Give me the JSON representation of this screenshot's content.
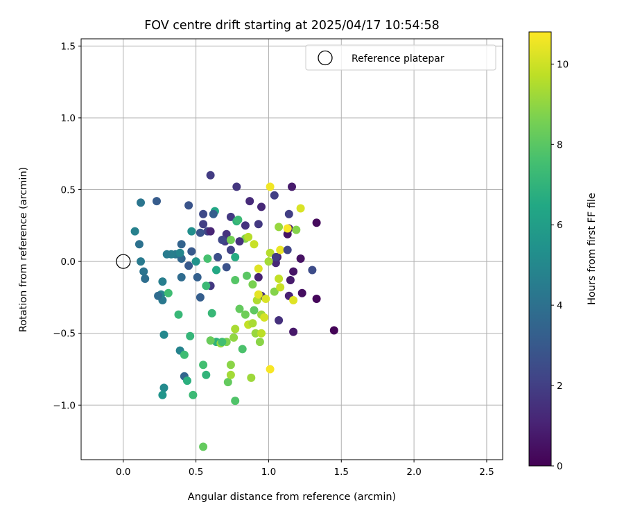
{
  "chart_data": {
    "type": "scatter",
    "title": "FOV centre drift starting at 2025/04/17 10:54:58",
    "xlabel": "Angular distance from reference (arcmin)",
    "ylabel": "Rotation from reference (arcmin)",
    "xlim": [
      -0.29,
      2.61
    ],
    "ylim": [
      -1.38,
      1.55
    ],
    "xticks": [
      "0.0",
      "0.5",
      "1.0",
      "1.5",
      "2.0",
      "2.5"
    ],
    "yticks": [
      "−1.0",
      "−0.5",
      "0.0",
      "0.5",
      "1.0",
      "1.5"
    ],
    "grid": true,
    "legend": {
      "position": "upper right",
      "entries": [
        "Reference platepar"
      ]
    },
    "reference_point": {
      "x": 0.0,
      "y": 0.0
    },
    "colorbar": {
      "label": "Hours from first FF file",
      "ticks": [
        "0",
        "2",
        "4",
        "6",
        "8",
        "10"
      ],
      "range": [
        0,
        10.8
      ],
      "colormap": "viridis"
    },
    "points": [
      {
        "x": 1.45,
        "y": -0.48,
        "h": 0.1
      },
      {
        "x": 1.33,
        "y": -0.26,
        "h": 0.2
      },
      {
        "x": 1.33,
        "y": 0.27,
        "h": 0.3
      },
      {
        "x": 1.23,
        "y": -0.22,
        "h": 0.4
      },
      {
        "x": 1.22,
        "y": 0.02,
        "h": 0.5
      },
      {
        "x": 1.17,
        "y": -0.07,
        "h": 0.6
      },
      {
        "x": 1.17,
        "y": -0.49,
        "h": 0.7
      },
      {
        "x": 1.16,
        "y": 0.52,
        "h": 0.8
      },
      {
        "x": 1.14,
        "y": 0.23,
        "h": 0.9
      },
      {
        "x": 1.14,
        "y": -0.24,
        "h": 1.0
      },
      {
        "x": 1.13,
        "y": 0.19,
        "h": 0.6
      },
      {
        "x": 1.15,
        "y": -0.13,
        "h": 0.8
      },
      {
        "x": 1.06,
        "y": 0.03,
        "h": 1.0
      },
      {
        "x": 1.07,
        "y": -0.41,
        "h": 1.5
      },
      {
        "x": 1.05,
        "y": -0.01,
        "h": 1.2
      },
      {
        "x": 1.04,
        "y": 0.46,
        "h": 2.0
      },
      {
        "x": 0.95,
        "y": 0.38,
        "h": 1.2
      },
      {
        "x": 0.93,
        "y": -0.11,
        "h": 1.0
      },
      {
        "x": 0.95,
        "y": -0.24,
        "h": 1.5
      },
      {
        "x": 0.93,
        "y": 0.26,
        "h": 1.8
      },
      {
        "x": 0.87,
        "y": 0.42,
        "h": 1.3
      },
      {
        "x": 0.84,
        "y": 0.25,
        "h": 1.6
      },
      {
        "x": 0.78,
        "y": 0.52,
        "h": 1.7
      },
      {
        "x": 0.74,
        "y": 0.31,
        "h": 1.8
      },
      {
        "x": 0.7,
        "y": 0.14,
        "h": 1.9
      },
      {
        "x": 0.71,
        "y": 0.19,
        "h": 1.6
      },
      {
        "x": 0.71,
        "y": -0.04,
        "h": 2.7
      },
      {
        "x": 0.74,
        "y": 0.08,
        "h": 2.1
      },
      {
        "x": 0.65,
        "y": 0.03,
        "h": 2.6
      },
      {
        "x": 0.6,
        "y": 0.6,
        "h": 1.9
      },
      {
        "x": 0.6,
        "y": -0.17,
        "h": 1.8
      },
      {
        "x": 0.58,
        "y": 0.21,
        "h": 2.2
      },
      {
        "x": 0.55,
        "y": 0.26,
        "h": 2.0
      },
      {
        "x": 0.55,
        "y": 0.33,
        "h": 2.4
      },
      {
        "x": 0.53,
        "y": 0.2,
        "h": 2.8
      },
      {
        "x": 0.53,
        "y": -0.25,
        "h": 3.2
      },
      {
        "x": 0.51,
        "y": -0.11,
        "h": 3.3
      },
      {
        "x": 0.47,
        "y": 0.07,
        "h": 3.0
      },
      {
        "x": 0.45,
        "y": 0.39,
        "h": 2.8
      },
      {
        "x": 0.45,
        "y": -0.03,
        "h": 3.0
      },
      {
        "x": 0.4,
        "y": 0.12,
        "h": 3.4
      },
      {
        "x": 0.4,
        "y": 0.02,
        "h": 3.6
      },
      {
        "x": 0.4,
        "y": -0.11,
        "h": 3.8
      },
      {
        "x": 0.42,
        "y": -0.8,
        "h": 3.5
      },
      {
        "x": 0.39,
        "y": -0.62,
        "h": 4.8
      },
      {
        "x": 0.36,
        "y": 0.05,
        "h": 4.3
      },
      {
        "x": 0.33,
        "y": 0.05,
        "h": 4.6
      },
      {
        "x": 0.39,
        "y": 0.06,
        "h": 4.9
      },
      {
        "x": 0.47,
        "y": 0.21,
        "h": 5.3
      },
      {
        "x": 0.5,
        "y": 0.0,
        "h": 5.5
      },
      {
        "x": 0.28,
        "y": -0.51,
        "h": 5.0
      },
      {
        "x": 0.28,
        "y": -0.88,
        "h": 5.1
      },
      {
        "x": 0.27,
        "y": -0.93,
        "h": 5.6
      },
      {
        "x": 0.27,
        "y": -0.27,
        "h": 4.3
      },
      {
        "x": 0.26,
        "y": -0.23,
        "h": 4.8
      },
      {
        "x": 0.27,
        "y": -0.14,
        "h": 4.6
      },
      {
        "x": 0.24,
        "y": -0.24,
        "h": 3.8
      },
      {
        "x": 0.23,
        "y": 0.42,
        "h": 3.1
      },
      {
        "x": 0.15,
        "y": -0.12,
        "h": 3.9
      },
      {
        "x": 0.14,
        "y": -0.07,
        "h": 4.1
      },
      {
        "x": 0.12,
        "y": 0.0,
        "h": 4.4
      },
      {
        "x": 0.11,
        "y": 0.12,
        "h": 4.0
      },
      {
        "x": 0.08,
        "y": 0.21,
        "h": 4.7
      },
      {
        "x": 0.12,
        "y": 0.41,
        "h": 4.2
      },
      {
        "x": 0.31,
        "y": -0.22,
        "h": 7.4
      },
      {
        "x": 0.38,
        "y": -0.37,
        "h": 7.2
      },
      {
        "x": 0.42,
        "y": -0.65,
        "h": 7.4
      },
      {
        "x": 0.46,
        "y": -0.52,
        "h": 7.1
      },
      {
        "x": 0.44,
        "y": -0.83,
        "h": 6.8
      },
      {
        "x": 0.48,
        "y": -0.93,
        "h": 7.3
      },
      {
        "x": 0.55,
        "y": -1.29,
        "h": 8.2
      },
      {
        "x": 0.55,
        "y": -0.72,
        "h": 7.5
      },
      {
        "x": 0.57,
        "y": -0.79,
        "h": 7.0
      },
      {
        "x": 0.57,
        "y": -0.17,
        "h": 7.3
      },
      {
        "x": 0.58,
        "y": 0.02,
        "h": 7.6
      },
      {
        "x": 0.61,
        "y": -0.36,
        "h": 7.2
      },
      {
        "x": 0.64,
        "y": -0.06,
        "h": 6.5
      },
      {
        "x": 0.63,
        "y": 0.35,
        "h": 6.4
      },
      {
        "x": 0.64,
        "y": -0.56,
        "h": 6.9
      },
      {
        "x": 0.67,
        "y": -0.57,
        "h": 9.0
      },
      {
        "x": 0.71,
        "y": -0.56,
        "h": 8.7
      },
      {
        "x": 0.72,
        "y": -0.84,
        "h": 8.2
      },
      {
        "x": 0.74,
        "y": -0.72,
        "h": 8.9
      },
      {
        "x": 0.74,
        "y": -0.79,
        "h": 9.3
      },
      {
        "x": 0.74,
        "y": 0.15,
        "h": 8.5
      },
      {
        "x": 0.76,
        "y": -0.53,
        "h": 9.0
      },
      {
        "x": 0.77,
        "y": -0.97,
        "h": 7.8
      },
      {
        "x": 0.77,
        "y": -0.47,
        "h": 9.4
      },
      {
        "x": 0.77,
        "y": -0.13,
        "h": 7.9
      },
      {
        "x": 0.78,
        "y": 0.28,
        "h": 6.9
      },
      {
        "x": 0.77,
        "y": 0.03,
        "h": 6.6
      },
      {
        "x": 0.79,
        "y": 0.29,
        "h": 7.3
      },
      {
        "x": 0.8,
        "y": -0.33,
        "h": 8.2
      },
      {
        "x": 0.82,
        "y": -0.61,
        "h": 7.7
      },
      {
        "x": 0.84,
        "y": -0.37,
        "h": 8.4
      },
      {
        "x": 0.84,
        "y": 0.16,
        "h": 8.8
      },
      {
        "x": 0.85,
        "y": -0.1,
        "h": 8.0
      },
      {
        "x": 0.86,
        "y": 0.17,
        "h": 9.6
      },
      {
        "x": 0.86,
        "y": -0.44,
        "h": 9.8
      },
      {
        "x": 0.88,
        "y": -0.81,
        "h": 9.2
      },
      {
        "x": 0.89,
        "y": -0.43,
        "h": 9.4
      },
      {
        "x": 0.89,
        "y": -0.16,
        "h": 8.6
      },
      {
        "x": 0.9,
        "y": 0.12,
        "h": 9.9
      },
      {
        "x": 0.9,
        "y": -0.34,
        "h": 8.1
      },
      {
        "x": 0.91,
        "y": -0.5,
        "h": 9.1
      },
      {
        "x": 0.92,
        "y": -0.27,
        "h": 9.5
      },
      {
        "x": 0.93,
        "y": -0.05,
        "h": 10.3
      },
      {
        "x": 0.93,
        "y": -0.23,
        "h": 10.4
      },
      {
        "x": 0.94,
        "y": -0.56,
        "h": 8.9
      },
      {
        "x": 0.95,
        "y": -0.5,
        "h": 9.7
      },
      {
        "x": 0.95,
        "y": -0.37,
        "h": 9.2
      },
      {
        "x": 0.97,
        "y": -0.39,
        "h": 10.1
      },
      {
        "x": 0.98,
        "y": -0.26,
        "h": 10.2
      },
      {
        "x": 1.0,
        "y": 0.0,
        "h": 9.3
      },
      {
        "x": 1.01,
        "y": 0.52,
        "h": 10.6
      },
      {
        "x": 1.01,
        "y": -0.75,
        "h": 10.7
      },
      {
        "x": 1.01,
        "y": 0.06,
        "h": 9.6
      },
      {
        "x": 1.04,
        "y": -0.21,
        "h": 8.8
      },
      {
        "x": 1.07,
        "y": -0.12,
        "h": 9.8
      },
      {
        "x": 1.07,
        "y": 0.24,
        "h": 9.1
      },
      {
        "x": 1.08,
        "y": -0.18,
        "h": 9.9
      },
      {
        "x": 1.08,
        "y": 0.08,
        "h": 10.5
      },
      {
        "x": 1.13,
        "y": 0.23,
        "h": 10.7
      },
      {
        "x": 1.17,
        "y": -0.27,
        "h": 10.3
      },
      {
        "x": 1.19,
        "y": 0.22,
        "h": 8.8
      },
      {
        "x": 1.22,
        "y": 0.37,
        "h": 10.2
      },
      {
        "x": 1.05,
        "y": 0.03,
        "h": 1.9
      },
      {
        "x": 0.8,
        "y": 0.14,
        "h": 1.5
      },
      {
        "x": 0.68,
        "y": 0.15,
        "h": 2.3
      },
      {
        "x": 1.13,
        "y": 0.08,
        "h": 2.2
      },
      {
        "x": 1.14,
        "y": 0.33,
        "h": 2.0
      },
      {
        "x": 1.3,
        "y": -0.06,
        "h": 2.5
      },
      {
        "x": 0.68,
        "y": -0.56,
        "h": 7.5
      },
      {
        "x": 0.6,
        "y": -0.55,
        "h": 8.3
      },
      {
        "x": 0.3,
        "y": 0.05,
        "h": 4.5
      },
      {
        "x": 0.62,
        "y": 0.33,
        "h": 3.2
      },
      {
        "x": 0.6,
        "y": 0.21,
        "h": 1.1
      }
    ]
  }
}
